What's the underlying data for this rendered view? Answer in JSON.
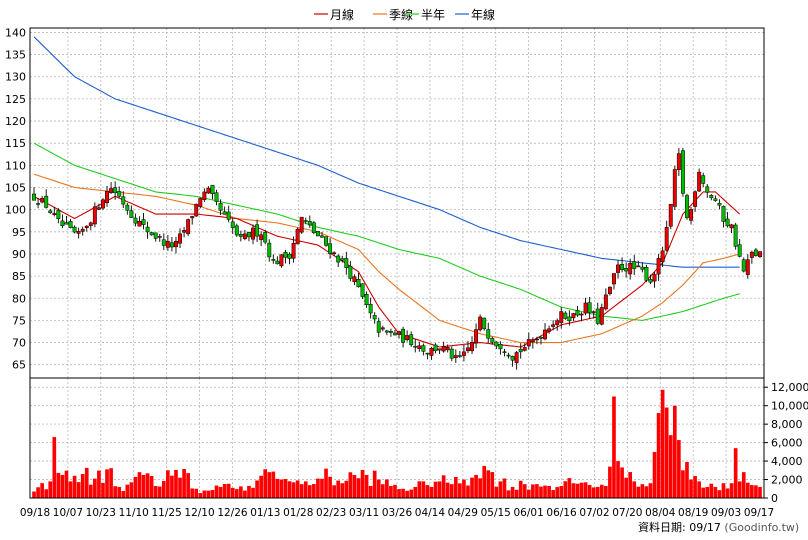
{
  "legend": {
    "items": [
      {
        "label": "月線",
        "color": "#cc0000"
      },
      {
        "label": "季線",
        "color": "#e87722"
      },
      {
        "label": "半年",
        "color": "#22cc22"
      },
      {
        "label": "年線",
        "color": "#1f5fcc"
      }
    ]
  },
  "footer": {
    "date_label": "資料日期: 09/17",
    "source": "(Goodinfo.tw)"
  },
  "chart_data": {
    "type": "candlestick",
    "x_tick_labels": [
      "09/18",
      "10/07",
      "10/23",
      "11/10",
      "11/25",
      "12/10",
      "12/26",
      "01/13",
      "01/28",
      "02/23",
      "03/11",
      "03/26",
      "04/14",
      "04/29",
      "05/15",
      "06/01",
      "06/16",
      "07/02",
      "07/20",
      "08/04",
      "08/19",
      "09/03",
      "09/17"
    ],
    "price_axis": {
      "ylim": [
        62,
        141
      ],
      "ticks": [
        65,
        70,
        75,
        80,
        85,
        90,
        95,
        100,
        105,
        110,
        115,
        120,
        125,
        130,
        135,
        140
      ]
    },
    "volume_axis": {
      "ylim": [
        0,
        13000
      ],
      "ticks": [
        0,
        2000,
        4000,
        6000,
        8000,
        10000,
        12000
      ],
      "tick_labels": [
        "0",
        "2,000",
        "4,000",
        "6,000",
        "8,000",
        "10,000",
        "12,000"
      ]
    },
    "close_keypoints": [
      [
        0,
        103
      ],
      [
        3,
        101
      ],
      [
        6,
        97
      ],
      [
        9,
        95
      ],
      [
        11,
        94
      ],
      [
        14,
        98
      ],
      [
        17,
        103
      ],
      [
        19,
        105
      ],
      [
        21,
        103
      ],
      [
        24,
        99
      ],
      [
        27,
        96
      ],
      [
        30,
        94
      ],
      [
        33,
        92
      ],
      [
        35,
        92
      ],
      [
        38,
        97
      ],
      [
        41,
        103
      ],
      [
        43,
        104
      ],
      [
        45,
        101
      ],
      [
        48,
        97
      ],
      [
        51,
        93
      ],
      [
        54,
        95
      ],
      [
        56,
        95
      ],
      [
        59,
        88
      ],
      [
        61,
        89
      ],
      [
        63,
        90
      ],
      [
        66,
        98
      ],
      [
        68,
        96
      ],
      [
        71,
        93
      ],
      [
        74,
        90
      ],
      [
        77,
        87
      ],
      [
        79,
        84
      ],
      [
        81,
        80
      ],
      [
        83,
        76
      ],
      [
        85,
        73
      ],
      [
        87,
        72
      ],
      [
        89,
        72
      ],
      [
        91,
        71
      ],
      [
        94,
        70
      ],
      [
        97,
        68
      ],
      [
        100,
        69
      ],
      [
        102,
        68
      ],
      [
        104,
        66
      ],
      [
        106,
        67
      ],
      [
        108,
        70
      ],
      [
        110,
        75
      ],
      [
        112,
        72
      ],
      [
        114,
        70
      ],
      [
        116,
        69
      ],
      [
        118,
        67
      ],
      [
        121,
        69
      ],
      [
        124,
        71
      ],
      [
        127,
        74
      ],
      [
        130,
        76
      ],
      [
        133,
        76
      ],
      [
        136,
        78
      ],
      [
        139,
        75
      ],
      [
        141,
        80
      ],
      [
        144,
        87
      ],
      [
        147,
        87
      ],
      [
        150,
        86
      ],
      [
        152,
        84
      ],
      [
        154,
        88
      ],
      [
        155,
        91
      ],
      [
        156,
        95
      ],
      [
        157,
        101
      ],
      [
        158,
        108
      ],
      [
        159,
        112
      ],
      [
        160,
        104
      ],
      [
        161,
        98
      ],
      [
        162,
        100
      ],
      [
        163,
        105
      ],
      [
        164,
        109
      ],
      [
        166,
        104
      ],
      [
        168,
        102
      ],
      [
        170,
        98
      ],
      [
        172,
        96
      ],
      [
        174,
        89
      ],
      [
        175,
        86
      ],
      [
        177,
        90
      ],
      [
        179,
        90
      ]
    ],
    "volume_keypoints": [
      [
        0,
        700
      ],
      [
        4,
        1800
      ],
      [
        5,
        6600
      ],
      [
        7,
        2500
      ],
      [
        9,
        1800
      ],
      [
        12,
        2600
      ],
      [
        15,
        2100
      ],
      [
        18,
        3100
      ],
      [
        21,
        1200
      ],
      [
        24,
        1700
      ],
      [
        27,
        2500
      ],
      [
        30,
        1300
      ],
      [
        33,
        3000
      ],
      [
        36,
        2200
      ],
      [
        38,
        2700
      ],
      [
        40,
        1000
      ],
      [
        43,
        800
      ],
      [
        46,
        1200
      ],
      [
        49,
        1100
      ],
      [
        52,
        800
      ],
      [
        55,
        1900
      ],
      [
        58,
        2800
      ],
      [
        61,
        2000
      ],
      [
        64,
        1700
      ],
      [
        67,
        1800
      ],
      [
        70,
        2100
      ],
      [
        73,
        2300
      ],
      [
        76,
        1600
      ],
      [
        79,
        2500
      ],
      [
        82,
        2500
      ],
      [
        85,
        2000
      ],
      [
        88,
        1300
      ],
      [
        91,
        1000
      ],
      [
        94,
        1200
      ],
      [
        97,
        1400
      ],
      [
        100,
        1800
      ],
      [
        103,
        1500
      ],
      [
        106,
        2000
      ],
      [
        109,
        2500
      ],
      [
        112,
        3000
      ],
      [
        115,
        1800
      ],
      [
        118,
        1200
      ],
      [
        121,
        1500
      ],
      [
        124,
        1500
      ],
      [
        127,
        1300
      ],
      [
        130,
        1300
      ],
      [
        133,
        1600
      ],
      [
        136,
        1700
      ],
      [
        139,
        1200
      ],
      [
        141,
        1300
      ],
      [
        143,
        11000
      ],
      [
        144,
        4000
      ],
      [
        146,
        2200
      ],
      [
        148,
        1800
      ],
      [
        150,
        1500
      ],
      [
        152,
        1600
      ],
      [
        154,
        9200
      ],
      [
        156,
        9800
      ],
      [
        158,
        10000
      ],
      [
        160,
        3000
      ],
      [
        161,
        3900
      ],
      [
        162,
        2000
      ],
      [
        164,
        1800
      ],
      [
        166,
        1200
      ],
      [
        168,
        1200
      ],
      [
        170,
        1600
      ],
      [
        172,
        1600
      ],
      [
        173,
        5400
      ],
      [
        174,
        1800
      ],
      [
        175,
        2800
      ],
      [
        177,
        1400
      ],
      [
        179,
        1200
      ]
    ],
    "ma_keypoints": {
      "month": [
        [
          0,
          103
        ],
        [
          10,
          98
        ],
        [
          20,
          103
        ],
        [
          30,
          99
        ],
        [
          40,
          99
        ],
        [
          50,
          98
        ],
        [
          60,
          94
        ],
        [
          70,
          92
        ],
        [
          80,
          86
        ],
        [
          85,
          78
        ],
        [
          90,
          72
        ],
        [
          100,
          69
        ],
        [
          110,
          70
        ],
        [
          120,
          69
        ],
        [
          130,
          74
        ],
        [
          140,
          76
        ],
        [
          150,
          83
        ],
        [
          155,
          88
        ],
        [
          160,
          99
        ],
        [
          165,
          104
        ],
        [
          168,
          104
        ],
        [
          174,
          99
        ]
      ],
      "quarter": [
        [
          0,
          108
        ],
        [
          10,
          105
        ],
        [
          20,
          104
        ],
        [
          30,
          103
        ],
        [
          40,
          101
        ],
        [
          50,
          98
        ],
        [
          60,
          97
        ],
        [
          70,
          95
        ],
        [
          80,
          91
        ],
        [
          85,
          86
        ],
        [
          90,
          82
        ],
        [
          100,
          75
        ],
        [
          110,
          72
        ],
        [
          120,
          70
        ],
        [
          130,
          70
        ],
        [
          140,
          72
        ],
        [
          150,
          76
        ],
        [
          155,
          79
        ],
        [
          160,
          83
        ],
        [
          165,
          88
        ],
        [
          170,
          89
        ],
        [
          174,
          90
        ]
      ],
      "half": [
        [
          0,
          115
        ],
        [
          10,
          110
        ],
        [
          20,
          107
        ],
        [
          30,
          104
        ],
        [
          40,
          103
        ],
        [
          50,
          101
        ],
        [
          60,
          99
        ],
        [
          70,
          96
        ],
        [
          80,
          94
        ],
        [
          90,
          91
        ],
        [
          100,
          89
        ],
        [
          110,
          85
        ],
        [
          120,
          82
        ],
        [
          130,
          78
        ],
        [
          140,
          76
        ],
        [
          150,
          75
        ],
        [
          160,
          77
        ],
        [
          170,
          80
        ],
        [
          174,
          81
        ]
      ],
      "year": [
        [
          0,
          139
        ],
        [
          10,
          130
        ],
        [
          20,
          125
        ],
        [
          30,
          122
        ],
        [
          40,
          119
        ],
        [
          50,
          116
        ],
        [
          60,
          113
        ],
        [
          70,
          110
        ],
        [
          80,
          106
        ],
        [
          90,
          103
        ],
        [
          100,
          100
        ],
        [
          110,
          96
        ],
        [
          120,
          93
        ],
        [
          130,
          91
        ],
        [
          140,
          89
        ],
        [
          150,
          88
        ],
        [
          160,
          87
        ],
        [
          170,
          87
        ],
        [
          174,
          87
        ]
      ]
    }
  }
}
